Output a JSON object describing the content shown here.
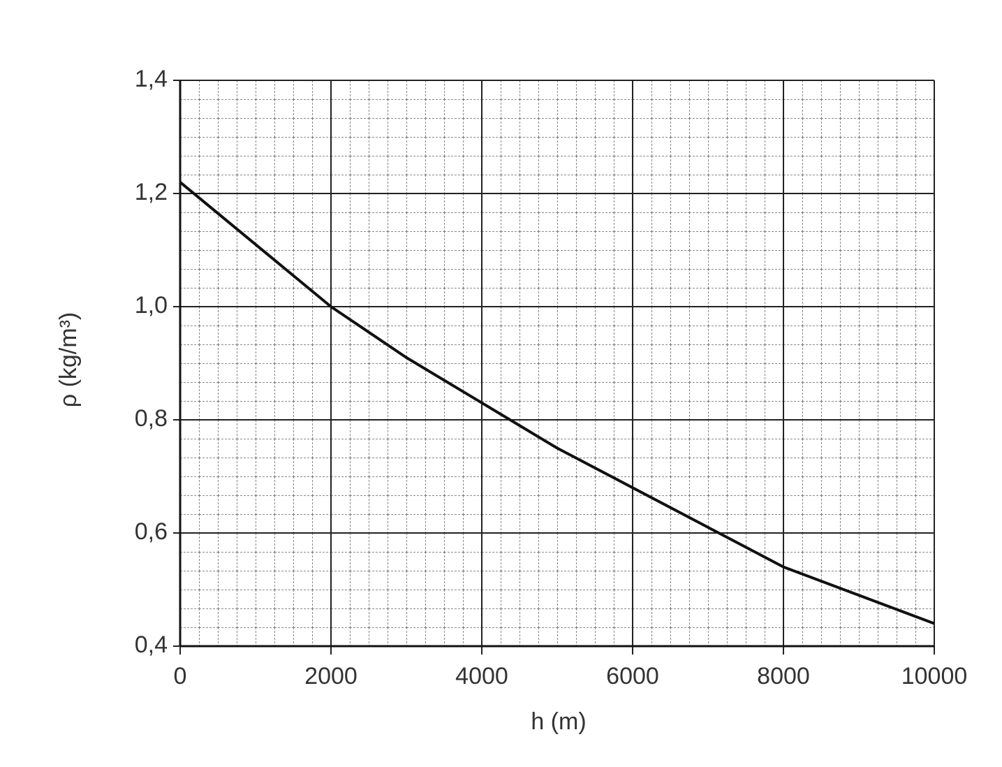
{
  "chart_data": {
    "type": "line",
    "x_label": "h (m)",
    "y_label": "ρ (kg/m³)",
    "x": [
      0,
      1000,
      2000,
      3000,
      4000,
      5000,
      6000,
      7000,
      8000,
      9000,
      10000
    ],
    "series": [
      {
        "color": "#111111",
        "values": [
          1.22,
          1.11,
          1.0,
          0.91,
          0.83,
          0.75,
          0.68,
          0.61,
          0.54,
          0.49,
          0.44
        ]
      }
    ],
    "xlim": [
      0,
      10000
    ],
    "xticks": [
      0,
      2000,
      4000,
      6000,
      8000,
      10000
    ],
    "ylim": [
      0.4,
      1.4
    ],
    "yticks": [
      {
        "value": 0.4,
        "label": "0,4"
      },
      {
        "value": 0.6,
        "label": "0,6"
      },
      {
        "value": 0.8,
        "label": "0,8"
      },
      {
        "value": 1.0,
        "label": "1,0"
      },
      {
        "value": 1.2,
        "label": "1,2"
      },
      {
        "value": 1.4,
        "label": "1,4"
      }
    ],
    "grid": true
  }
}
